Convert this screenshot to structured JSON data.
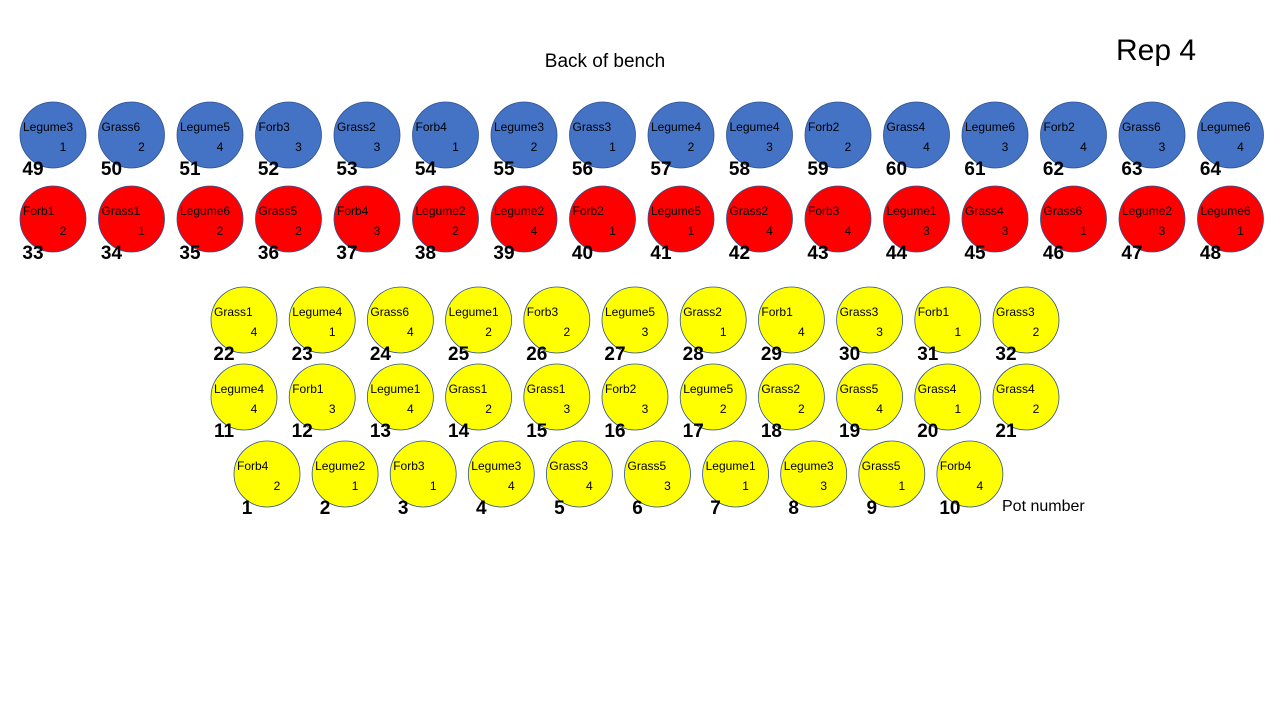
{
  "header": {
    "title": "Rep 4",
    "subtitle": "Back of bench",
    "legend": "Pot number"
  },
  "rows": [
    {
      "color": "#4472c4",
      "pots": [
        {
          "species": "Legume3",
          "rep": "1",
          "pot": "49"
        },
        {
          "species": "Grass6",
          "rep": "2",
          "pot": "50"
        },
        {
          "species": "Legume5",
          "rep": "4",
          "pot": "51"
        },
        {
          "species": "Forb3",
          "rep": "3",
          "pot": "52"
        },
        {
          "species": "Grass2",
          "rep": "3",
          "pot": "53"
        },
        {
          "species": "Forb4",
          "rep": "1",
          "pot": "54"
        },
        {
          "species": "Legume3",
          "rep": "2",
          "pot": "55"
        },
        {
          "species": "Grass3",
          "rep": "1",
          "pot": "56"
        },
        {
          "species": "Legume4",
          "rep": "2",
          "pot": "57"
        },
        {
          "species": "Legume4",
          "rep": "3",
          "pot": "58"
        },
        {
          "species": "Forb2",
          "rep": "2",
          "pot": "59"
        },
        {
          "species": "Grass4",
          "rep": "4",
          "pot": "60"
        },
        {
          "species": "Legume6",
          "rep": "3",
          "pot": "61"
        },
        {
          "species": "Forb2",
          "rep": "4",
          "pot": "62"
        },
        {
          "species": "Grass6",
          "rep": "3",
          "pot": "63"
        },
        {
          "species": "Legume6",
          "rep": "4",
          "pot": "64"
        }
      ]
    },
    {
      "color": "#ff0000",
      "pots": [
        {
          "species": "Forb1",
          "rep": "2",
          "pot": "33"
        },
        {
          "species": "Grass1",
          "rep": "1",
          "pot": "34"
        },
        {
          "species": "Legume6",
          "rep": "2",
          "pot": "35"
        },
        {
          "species": "Grass5",
          "rep": "2",
          "pot": "36"
        },
        {
          "species": "Forb4",
          "rep": "3",
          "pot": "37"
        },
        {
          "species": "Legume2",
          "rep": "2",
          "pot": "38"
        },
        {
          "species": "Legume2",
          "rep": "4",
          "pot": "39"
        },
        {
          "species": "Forb2",
          "rep": "1",
          "pot": "40"
        },
        {
          "species": "Legume5",
          "rep": "1",
          "pot": "41"
        },
        {
          "species": "Grass2",
          "rep": "4",
          "pot": "42"
        },
        {
          "species": "Forb3",
          "rep": "4",
          "pot": "43"
        },
        {
          "species": "Legume1",
          "rep": "3",
          "pot": "44"
        },
        {
          "species": "Grass4",
          "rep": "3",
          "pot": "45"
        },
        {
          "species": "Grass6",
          "rep": "1",
          "pot": "46"
        },
        {
          "species": "Legume2",
          "rep": "3",
          "pot": "47"
        },
        {
          "species": "Legume6",
          "rep": "1",
          "pot": "48"
        }
      ]
    },
    {
      "color": "#ffff00",
      "pots": [
        {
          "species": "Grass1",
          "rep": "4",
          "pot": "22"
        },
        {
          "species": "Legume4",
          "rep": "1",
          "pot": "23"
        },
        {
          "species": "Grass6",
          "rep": "4",
          "pot": "24"
        },
        {
          "species": "Legume1",
          "rep": "2",
          "pot": "25"
        },
        {
          "species": "Forb3",
          "rep": "2",
          "pot": "26"
        },
        {
          "species": "Legume5",
          "rep": "3",
          "pot": "27"
        },
        {
          "species": "Grass2",
          "rep": "1",
          "pot": "28"
        },
        {
          "species": "Forb1",
          "rep": "4",
          "pot": "29"
        },
        {
          "species": "Grass3",
          "rep": "3",
          "pot": "30"
        },
        {
          "species": "Forb1",
          "rep": "1",
          "pot": "31"
        },
        {
          "species": "Grass3",
          "rep": "2",
          "pot": "32"
        }
      ]
    },
    {
      "color": "#ffff00",
      "pots": [
        {
          "species": "Legume4",
          "rep": "4",
          "pot": "11"
        },
        {
          "species": "Forb1",
          "rep": "3",
          "pot": "12"
        },
        {
          "species": "Legume1",
          "rep": "4",
          "pot": "13"
        },
        {
          "species": "Grass1",
          "rep": "2",
          "pot": "14"
        },
        {
          "species": "Grass1",
          "rep": "3",
          "pot": "15"
        },
        {
          "species": "Forb2",
          "rep": "3",
          "pot": "16"
        },
        {
          "species": "Legume5",
          "rep": "2",
          "pot": "17"
        },
        {
          "species": "Grass2",
          "rep": "2",
          "pot": "18"
        },
        {
          "species": "Grass5",
          "rep": "4",
          "pot": "19"
        },
        {
          "species": "Grass4",
          "rep": "1",
          "pot": "20"
        },
        {
          "species": "Grass4",
          "rep": "2",
          "pot": "21"
        }
      ]
    },
    {
      "color": "#ffff00",
      "pots": [
        {
          "species": "Forb4",
          "rep": "2",
          "pot": "1"
        },
        {
          "species": "Legume2",
          "rep": "1",
          "pot": "2"
        },
        {
          "species": "Forb3",
          "rep": "1",
          "pot": "3"
        },
        {
          "species": "Legume3",
          "rep": "4",
          "pot": "4"
        },
        {
          "species": "Grass3",
          "rep": "4",
          "pot": "5"
        },
        {
          "species": "Grass5",
          "rep": "3",
          "pot": "6"
        },
        {
          "species": "Legume1",
          "rep": "1",
          "pot": "7"
        },
        {
          "species": "Legume3",
          "rep": "3",
          "pot": "8"
        },
        {
          "species": "Grass5",
          "rep": "1",
          "pot": "9"
        },
        {
          "species": "Forb4",
          "rep": "4",
          "pot": "10"
        }
      ]
    }
  ]
}
